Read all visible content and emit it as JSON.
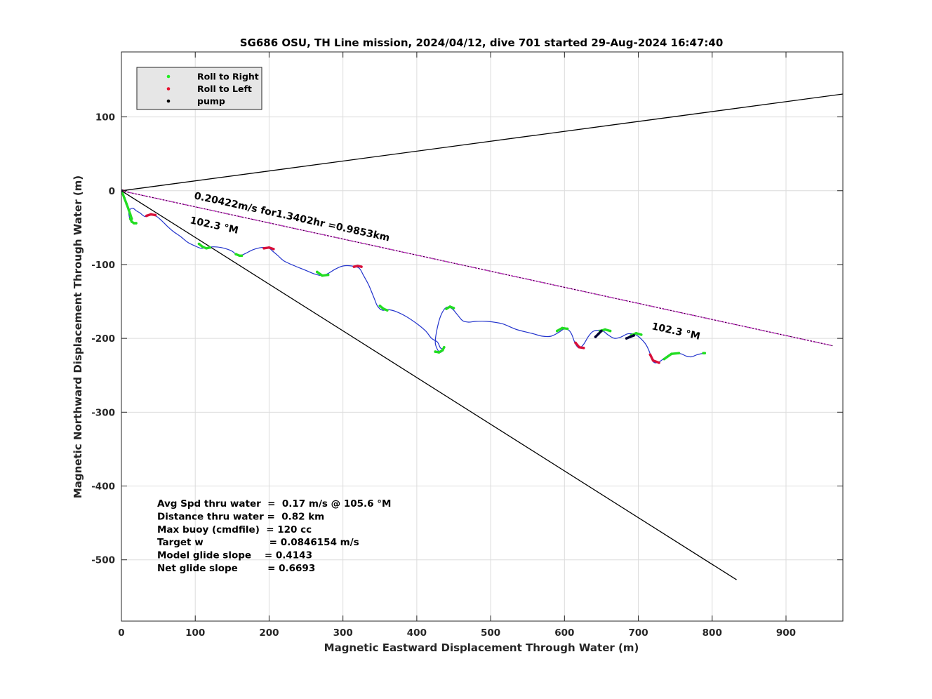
{
  "chart_data": {
    "type": "line",
    "title": "SG686 OSU, TH Line mission, 2024/04/12, dive 701 started 29-Aug-2024 16:47:40",
    "xlabel": "Magnetic Eastward Displacement Through Water (m)",
    "ylabel": "Magnetic Northward Displacement Through Water (m)",
    "xlim": [
      0,
      977
    ],
    "ylim": [
      -583,
      188
    ],
    "x_ticks": [
      0,
      100,
      200,
      300,
      400,
      500,
      600,
      700,
      800,
      900
    ],
    "y_ticks": [
      100,
      0,
      -100,
      -200,
      -300,
      -400,
      -500
    ],
    "grid": true,
    "legend": {
      "placement": "top-left",
      "entries": [
        {
          "label": "Roll to Right",
          "color": "#22ee22"
        },
        {
          "label": "Roll to Left",
          "color": "#e8102e"
        },
        {
          "label": "pump",
          "color": "#000000"
        }
      ]
    },
    "reference_lines": [
      {
        "name": "heading-upper-bound",
        "color": "#000000",
        "x": [
          0,
          977
        ],
        "y": [
          0,
          131
        ]
      },
      {
        "name": "heading-lower-bound",
        "color": "#000000",
        "x": [
          0,
          833
        ],
        "y": [
          0,
          -527
        ]
      },
      {
        "name": "net-displacement",
        "color": "#cc33cc",
        "x": [
          0,
          963
        ],
        "y": [
          0,
          -210
        ]
      }
    ],
    "annotations": {
      "speed_text": "0.20422m/s for1.3402hr =0.9853km",
      "heading_start": "102.3 °M",
      "heading_end": "102.3 °M"
    },
    "track": {
      "name": "glider-track",
      "color": "#2233cc",
      "x": [
        0,
        2,
        5,
        8,
        11,
        14,
        12,
        10,
        12,
        16,
        20,
        25,
        32,
        40,
        48,
        56,
        62,
        70,
        80,
        90,
        100,
        108,
        115,
        125,
        135,
        143,
        150,
        155,
        160,
        168,
        178,
        190,
        200,
        205,
        212,
        220,
        235,
        250,
        262,
        272,
        280,
        290,
        300,
        312,
        322,
        328,
        335,
        342,
        346,
        350,
        355,
        360,
        370,
        385,
        400,
        412,
        420,
        428,
        432,
        436,
        432,
        428,
        425,
        428,
        433,
        440,
        448,
        455,
        462,
        470,
        480,
        495,
        515,
        535,
        555,
        570,
        582,
        592,
        600,
        606,
        610,
        615,
        620,
        626,
        632,
        638,
        645,
        652,
        660,
        668,
        677,
        685,
        693,
        698,
        703,
        710,
        715,
        718,
        722,
        728,
        735,
        742,
        750,
        758,
        765,
        772,
        780,
        789
      ],
      "y": [
        0,
        -5,
        -12,
        -20,
        -28,
        -36,
        -40,
        -30,
        -25,
        -24,
        -27,
        -30,
        -35,
        -32,
        -35,
        -42,
        -48,
        -55,
        -62,
        -70,
        -75,
        -78,
        -77,
        -76,
        -77,
        -79,
        -82,
        -86,
        -88,
        -85,
        -80,
        -77,
        -78,
        -82,
        -88,
        -95,
        -102,
        -108,
        -113,
        -115,
        -112,
        -106,
        -102,
        -102,
        -105,
        -115,
        -128,
        -145,
        -155,
        -160,
        -162,
        -161,
        -163,
        -170,
        -180,
        -190,
        -200,
        -205,
        -213,
        -215,
        -219,
        -215,
        -205,
        -185,
        -168,
        -158,
        -160,
        -168,
        -176,
        -178,
        -177,
        -177,
        -180,
        -188,
        -193,
        -197,
        -197,
        -192,
        -187,
        -189,
        -195,
        -208,
        -213,
        -208,
        -198,
        -191,
        -189,
        -190,
        -196,
        -200,
        -198,
        -194,
        -194,
        -196,
        -200,
        -208,
        -218,
        -228,
        -233,
        -232,
        -227,
        -222,
        -220,
        -221,
        -224,
        -225,
        -222,
        -220
      ]
    },
    "roll_right_segments": [
      {
        "x": [
          1,
          4,
          7,
          10,
          12,
          14
        ],
        "y": [
          -2,
          -10,
          -18,
          -26,
          -32,
          -38
        ]
      },
      {
        "x": [
          12,
          14,
          17,
          20
        ],
        "y": [
          -38,
          -42,
          -44,
          -44
        ]
      },
      {
        "x": [
          105,
          110,
          115,
          120
        ],
        "y": [
          -72,
          -76,
          -78,
          -77
        ]
      },
      {
        "x": [
          155,
          160,
          163
        ],
        "y": [
          -86,
          -88,
          -88
        ]
      },
      {
        "x": [
          265,
          272,
          280
        ],
        "y": [
          -110,
          -115,
          -114
        ]
      },
      {
        "x": [
          350,
          355,
          360
        ],
        "y": [
          -156,
          -160,
          -162
        ]
      },
      {
        "x": [
          425,
          430,
          435,
          437
        ],
        "y": [
          -218,
          -219,
          -216,
          -212
        ]
      },
      {
        "x": [
          440,
          445,
          450
        ],
        "y": [
          -160,
          -157,
          -159
        ]
      },
      {
        "x": [
          590,
          597,
          604
        ],
        "y": [
          -190,
          -186,
          -187
        ]
      },
      {
        "x": [
          648,
          655,
          662
        ],
        "y": [
          -190,
          -188,
          -190
        ]
      },
      {
        "x": [
          690,
          697,
          704
        ],
        "y": [
          -196,
          -193,
          -195
        ]
      },
      {
        "x": [
          735,
          745,
          755
        ],
        "y": [
          -228,
          -221,
          -220
        ]
      },
      {
        "x": [
          788,
          790
        ],
        "y": [
          -220,
          -220
        ]
      }
    ],
    "roll_left_segments": [
      {
        "x": [
          0,
          2
        ],
        "y": [
          0,
          0
        ]
      },
      {
        "x": [
          34,
          40,
          46
        ],
        "y": [
          -34,
          -32,
          -33
        ]
      },
      {
        "x": [
          193,
          200,
          206
        ],
        "y": [
          -78,
          -77,
          -79
        ]
      },
      {
        "x": [
          315,
          320,
          325
        ],
        "y": [
          -103,
          -102,
          -103
        ]
      },
      {
        "x": [
          615,
          620,
          626
        ],
        "y": [
          -206,
          -212,
          -213
        ]
      },
      {
        "x": [
          716,
          720,
          728
        ],
        "y": [
          -222,
          -230,
          -233
        ]
      }
    ],
    "pump_segments": [
      {
        "x": [
          0,
          1
        ],
        "y": [
          0,
          0
        ]
      },
      {
        "x": [
          642,
          646,
          650
        ],
        "y": [
          -198,
          -194,
          -190
        ]
      },
      {
        "x": [
          684,
          689,
          694
        ],
        "y": [
          -200,
          -198,
          -196
        ]
      }
    ],
    "stats": [
      "Avg Spd thru water  =  0.17 m/s @ 105.6 °M",
      "Distance thru water =  0.82 km",
      "Max buoy (cmdfile)  = 120 cc",
      "Target w                    = 0.0846154 m/s",
      "Model glide slope    = 0.4143",
      "Net glide slope         = 0.6693"
    ]
  }
}
